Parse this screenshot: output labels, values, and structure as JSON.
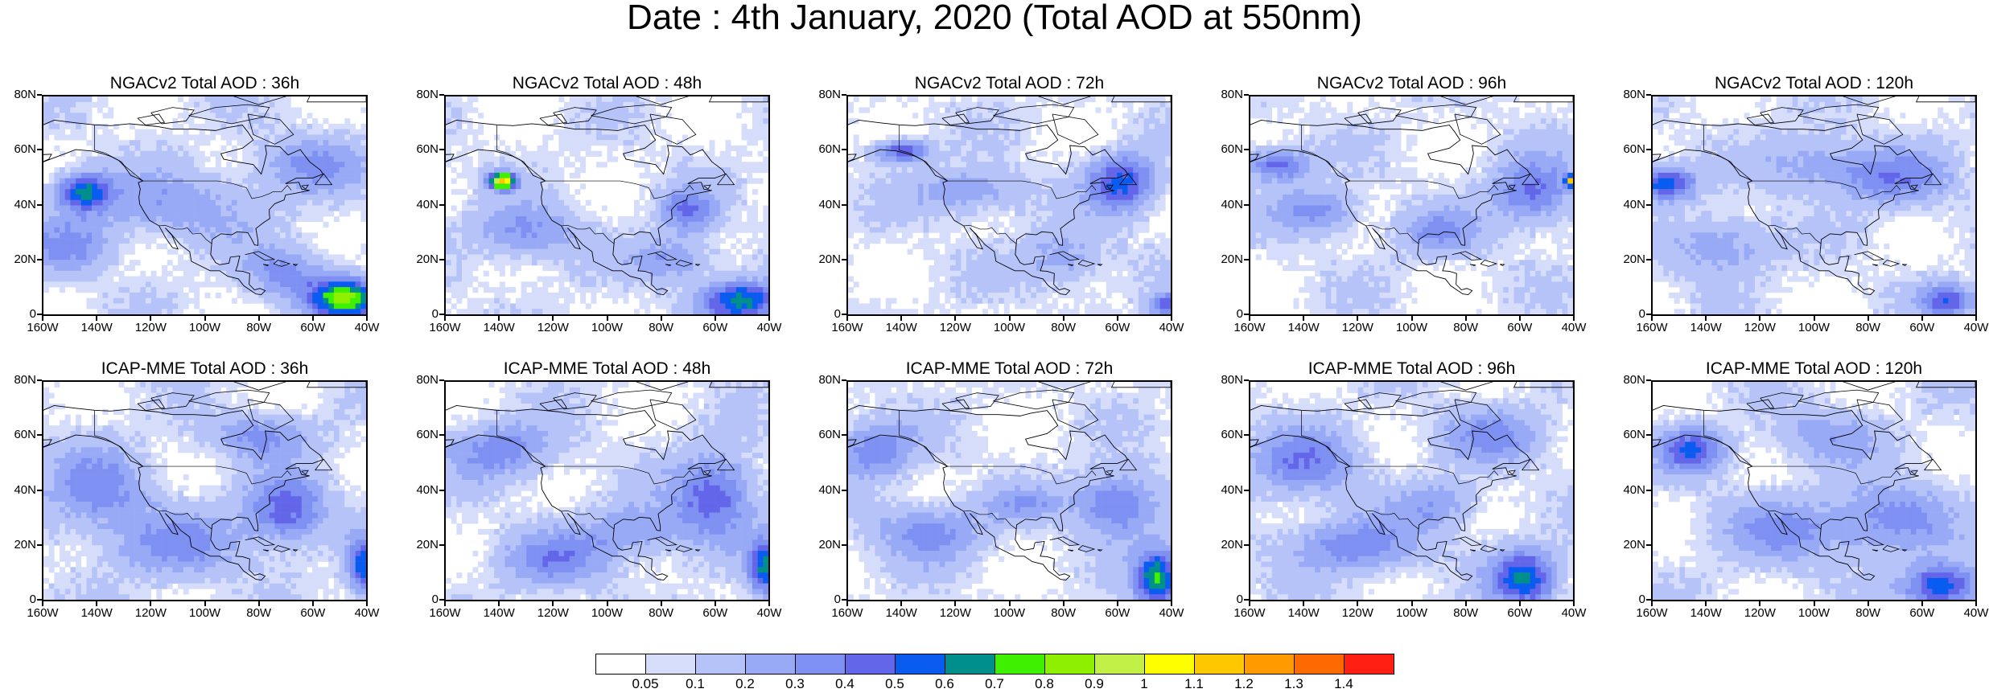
{
  "title": "Date : 4th January, 2020 (Total AOD at 550nm)",
  "lat_ticks": [
    "80N",
    "60N",
    "40N",
    "20N",
    "0"
  ],
  "lon_ticks": [
    "160W",
    "140W",
    "120W",
    "100W",
    "80W",
    "60W",
    "40W"
  ],
  "panels": [
    {
      "title": "NGACv2 Total AOD : 36h"
    },
    {
      "title": "NGACv2 Total AOD : 48h"
    },
    {
      "title": "NGACv2 Total AOD : 72h"
    },
    {
      "title": "NGACv2 Total AOD : 96h"
    },
    {
      "title": "NGACv2 Total AOD : 120h"
    },
    {
      "title": "ICAP-MME Total AOD : 36h"
    },
    {
      "title": "ICAP-MME Total AOD : 48h"
    },
    {
      "title": "ICAP-MME Total AOD : 72h"
    },
    {
      "title": "ICAP-MME Total AOD : 96h"
    },
    {
      "title": "ICAP-MME Total AOD : 120h"
    }
  ],
  "colorbar": {
    "labels": [
      "0.05",
      "0.1",
      "0.2",
      "0.3",
      "0.4",
      "0.5",
      "0.6",
      "0.7",
      "0.8",
      "0.9",
      "1",
      "1.1",
      "1.2",
      "1.3",
      "1.4"
    ],
    "colors": [
      "#ffffff",
      "#d6ddfb",
      "#b6c3f8",
      "#98aaf6",
      "#7e91f2",
      "#6466ea",
      "#0a5cf0",
      "#008f8a",
      "#3ff000",
      "#8ef000",
      "#c3f046",
      "#fefe00",
      "#fec800",
      "#fe9b00",
      "#fe6a00",
      "#fe1e12"
    ]
  }
}
